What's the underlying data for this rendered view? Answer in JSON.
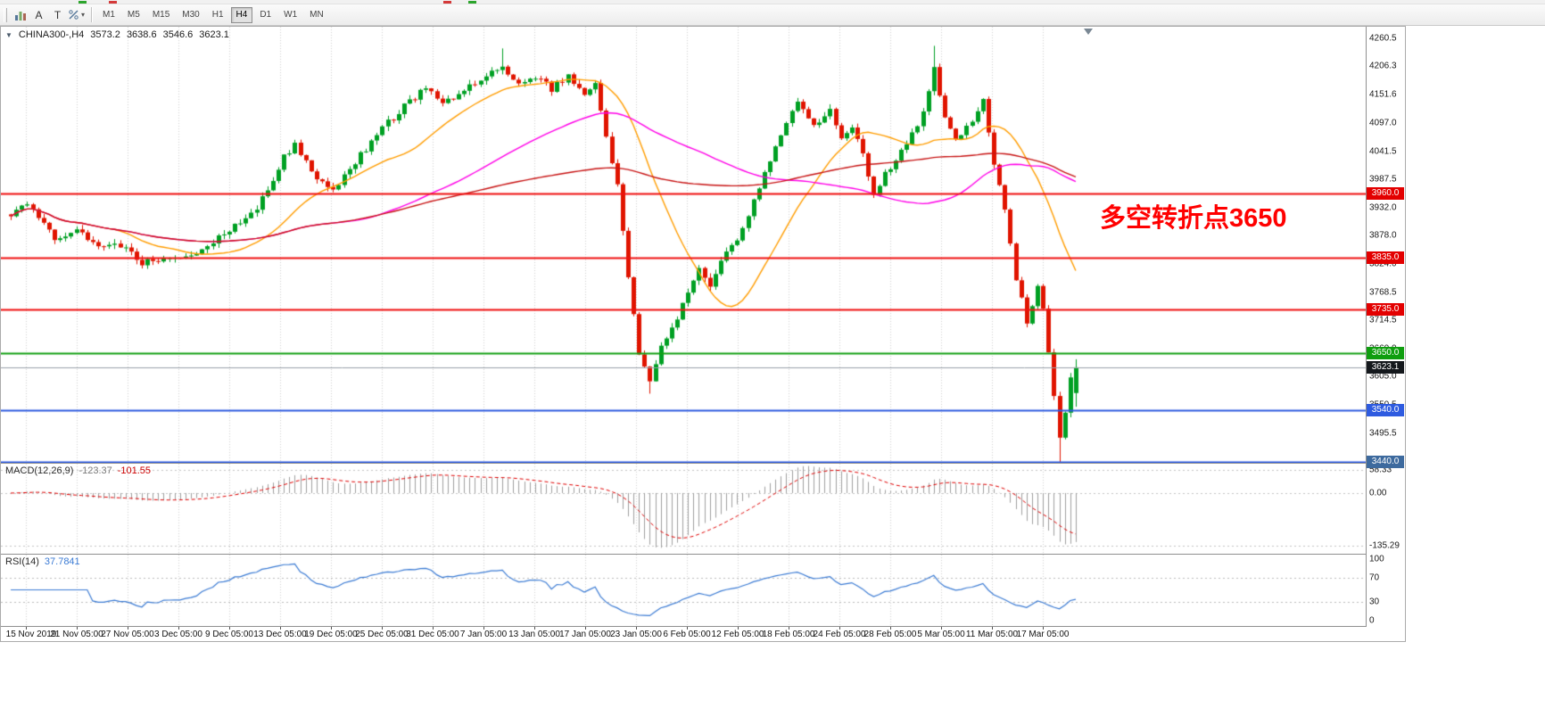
{
  "toolbar": {
    "tool_a_label": "A",
    "tool_t_label": "T",
    "timeframes": [
      "M1",
      "M5",
      "M15",
      "M30",
      "H1",
      "H4",
      "D1",
      "W1",
      "MN"
    ],
    "active_timeframe": "H4"
  },
  "chart": {
    "legend": {
      "symbol_tf": "CHINA300-,H4",
      "open": "3573.2",
      "high": "3638.6",
      "low": "3546.6",
      "close": "3623.1"
    },
    "annotation": {
      "text": "多空转折点3650",
      "color": "#ff0000"
    }
  },
  "price_axis": {
    "ticks": [
      "4260.5",
      "4206.3",
      "4151.6",
      "4097.0",
      "4041.5",
      "3987.5",
      "3932.0",
      "3878.0",
      "3824.0",
      "3768.5",
      "3714.5",
      "3660.0",
      "3605.0",
      "3550.5",
      "3495.5",
      "3441.0"
    ]
  },
  "time_axis": {
    "labels": [
      "15 Nov 2019",
      "21 Nov 05:00",
      "27 Nov 05:00",
      "3 Dec 05:00",
      "9 Dec 05:00",
      "13 Dec 05:00",
      "19 Dec 05:00",
      "25 Dec 05:00",
      "31 Dec 05:00",
      "7 Jan 05:00",
      "13 Jan 05:00",
      "17 Jan 05:00",
      "23 Jan 05:00",
      "6 Feb 05:00",
      "12 Feb 05:00",
      "18 Feb 05:00",
      "24 Feb 05:00",
      "28 Feb 05:00",
      "5 Mar 05:00",
      "11 Mar 05:00",
      "17 Mar 05:00"
    ]
  },
  "macd": {
    "name": "MACD(12,26,9)",
    "value_main": "-123.37",
    "value_signal": "-101.55",
    "ticks": [
      "58.33",
      "0.00",
      "-135.29"
    ]
  },
  "rsi": {
    "name": "RSI(14)",
    "value": "37.7841",
    "ticks": [
      "100",
      "70",
      "30",
      "0"
    ],
    "levels": [
      70,
      30
    ]
  },
  "chart_data": {
    "type": "candlestick",
    "symbol": "CHINA300-",
    "timeframe": "H4",
    "bar_count": 196,
    "seed": 9,
    "ylim": [
      3438,
      4283
    ],
    "last_bar": {
      "open": 3573.2,
      "high": 3638.6,
      "low": 3546.6,
      "close": 3623.1
    },
    "current_price": {
      "label": "3623.1",
      "value": 3623.1,
      "badge_color": "#14181c",
      "line_color": "#9aa2aa"
    },
    "price_pivots": [
      [
        0,
        3920
      ],
      [
        3,
        3936
      ],
      [
        8,
        3872
      ],
      [
        12,
        3893
      ],
      [
        16,
        3856
      ],
      [
        20,
        3862
      ],
      [
        24,
        3826
      ],
      [
        28,
        3837
      ],
      [
        31,
        3830
      ],
      [
        35,
        3856
      ],
      [
        40,
        3886
      ],
      [
        44,
        3922
      ],
      [
        47,
        3962
      ],
      [
        50,
        4030
      ],
      [
        52,
        4056
      ],
      [
        55,
        4000
      ],
      [
        59,
        3968
      ],
      [
        63,
        4022
      ],
      [
        68,
        4086
      ],
      [
        72,
        4130
      ],
      [
        76,
        4166
      ],
      [
        79,
        4132
      ],
      [
        83,
        4156
      ],
      [
        87,
        4190
      ],
      [
        90,
        4208
      ],
      [
        93,
        4170
      ],
      [
        96,
        4186
      ],
      [
        99,
        4162
      ],
      [
        102,
        4190
      ],
      [
        105,
        4152
      ],
      [
        107,
        4168
      ],
      [
        109,
        4072
      ],
      [
        111,
        3978
      ],
      [
        113,
        3800
      ],
      [
        115,
        3648
      ],
      [
        117,
        3598
      ],
      [
        119,
        3658
      ],
      [
        122,
        3722
      ],
      [
        124,
        3772
      ],
      [
        126,
        3812
      ],
      [
        128,
        3784
      ],
      [
        131,
        3842
      ],
      [
        133,
        3872
      ],
      [
        136,
        3942
      ],
      [
        139,
        4022
      ],
      [
        142,
        4092
      ],
      [
        144,
        4142
      ],
      [
        147,
        4092
      ],
      [
        150,
        4122
      ],
      [
        152,
        4062
      ],
      [
        154,
        4092
      ],
      [
        156,
        4032
      ],
      [
        158,
        3962
      ],
      [
        161,
        4012
      ],
      [
        164,
        4062
      ],
      [
        167,
        4112
      ],
      [
        169,
        4198
      ],
      [
        171,
        4108
      ],
      [
        173,
        4062
      ],
      [
        176,
        4102
      ],
      [
        178,
        4138
      ],
      [
        180,
        4022
      ],
      [
        182,
        3922
      ],
      [
        184,
        3792
      ],
      [
        186,
        3712
      ],
      [
        188,
        3782
      ],
      [
        189,
        3742
      ],
      [
        191,
        3562
      ],
      [
        192,
        3486
      ],
      [
        193,
        3532
      ],
      [
        194,
        3598
      ],
      [
        195,
        3623.1
      ]
    ],
    "spikes": [
      {
        "i": 90,
        "high": 4241
      },
      {
        "i": 169,
        "high": 4246
      },
      {
        "i": 117,
        "low": 3572
      },
      {
        "i": 192,
        "low": 3436
      }
    ],
    "levels": [
      {
        "label": "3960.0",
        "value": 3960,
        "color": "#f01010",
        "badge": "#e30000"
      },
      {
        "label": "3835.0",
        "value": 3835,
        "color": "#f01010",
        "badge": "#e30000"
      },
      {
        "label": "3735.0",
        "value": 3735,
        "color": "#f01010",
        "badge": "#e30000"
      },
      {
        "label": "3650.0",
        "value": 3650,
        "color": "#14a014",
        "badge": "#0f9e0f"
      },
      {
        "label": "3540.0",
        "value": 3540,
        "color": "#2e5be0",
        "badge": "#2e5be0"
      },
      {
        "label": "3440.0",
        "value": 3440,
        "color": "#2e5be0",
        "badge": "#3d6a9e"
      }
    ],
    "moving_averages": [
      {
        "period": 20,
        "color": "#ff9d00"
      },
      {
        "period": 60,
        "color": "#ff00e8"
      },
      {
        "period": 120,
        "color": "#c81414"
      }
    ],
    "candle_up_color": "#00a023",
    "candle_down_color": "#e01400",
    "macd_ylim": [
      -155,
      75
    ],
    "rsi_ylim": [
      -8,
      108
    ]
  }
}
